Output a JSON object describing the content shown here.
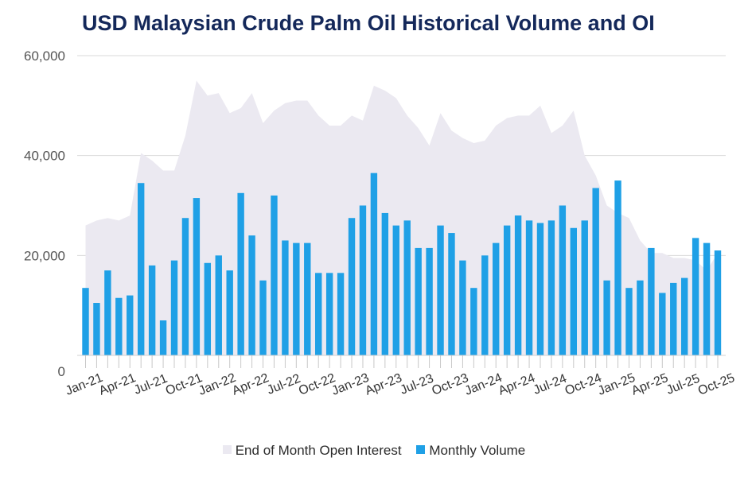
{
  "chart_data": {
    "type": "bar",
    "title": "USD Malaysian Crude Palm Oil Historical Volume and OI",
    "xlabel": "",
    "ylabel": "",
    "ylim": [
      0,
      60000
    ],
    "y_ticks": [
      0,
      20000,
      40000,
      60000
    ],
    "y_tick_labels": [
      "0",
      "20,000",
      "40,000",
      "60,000"
    ],
    "grid": true,
    "legend_position": "bottom",
    "x_tick_labels": [
      "Jan-21",
      "Apr-21",
      "Jul-21",
      "Oct-21",
      "Jan-22",
      "Apr-22",
      "Jul-22",
      "Oct-22",
      "Jan-23",
      "Apr-23",
      "Jul-23",
      "Oct-23",
      "Jan-24",
      "Apr-24",
      "Jul-24",
      "Oct-24",
      "Jan-25",
      "Apr-25",
      "Jul-25",
      "Oct-25"
    ],
    "categories": [
      "Jan-21",
      "Feb-21",
      "Mar-21",
      "Apr-21",
      "May-21",
      "Jun-21",
      "Jul-21",
      "Aug-21",
      "Sep-21",
      "Oct-21",
      "Nov-21",
      "Dec-21",
      "Jan-22",
      "Feb-22",
      "Mar-22",
      "Apr-22",
      "May-22",
      "Jun-22",
      "Jul-22",
      "Aug-22",
      "Sep-22",
      "Oct-22",
      "Nov-22",
      "Dec-22",
      "Jan-23",
      "Feb-23",
      "Mar-23",
      "Apr-23",
      "May-23",
      "Jun-23",
      "Jul-23",
      "Aug-23",
      "Sep-23",
      "Oct-23",
      "Nov-23",
      "Dec-23",
      "Jan-24",
      "Feb-24",
      "Mar-24",
      "Apr-24",
      "May-24",
      "Jun-24",
      "Jul-24",
      "Aug-24",
      "Sep-24",
      "Oct-24",
      "Nov-24",
      "Dec-24",
      "Jan-25",
      "Feb-25",
      "Mar-25",
      "Apr-25",
      "May-25",
      "Jun-25",
      "Jul-25",
      "Aug-25",
      "Sep-25",
      "Oct-25"
    ],
    "series": [
      {
        "name": "End of Month Open Interest",
        "type": "area",
        "color": "#ebe9f1",
        "values": [
          26000,
          27000,
          27500,
          27000,
          28000,
          40500,
          39000,
          37000,
          37000,
          44000,
          55000,
          52000,
          52500,
          48500,
          49500,
          52500,
          46500,
          49000,
          50500,
          51000,
          51000,
          48000,
          46000,
          46000,
          48000,
          47000,
          54000,
          53000,
          51500,
          48000,
          45500,
          42000,
          48500,
          45000,
          43500,
          42500,
          43000,
          46000,
          47500,
          48000,
          48000,
          50000,
          44500,
          46000,
          49000,
          40000,
          36000,
          30000,
          28500,
          27500,
          23000,
          20500,
          20500,
          19500,
          19500,
          19000,
          17000,
          20500
        ]
      },
      {
        "name": "Monthly Volume",
        "type": "bar",
        "color": "#1fa0e6",
        "values": [
          13500,
          10500,
          17000,
          11500,
          12000,
          34500,
          18000,
          7000,
          19000,
          27500,
          31500,
          18500,
          20000,
          17000,
          32500,
          24000,
          15000,
          32000,
          23000,
          22500,
          22500,
          16500,
          16500,
          16500,
          27500,
          30000,
          36500,
          28500,
          26000,
          27000,
          21500,
          21500,
          26000,
          24500,
          19000,
          13500,
          20000,
          22500,
          26000,
          28000,
          27000,
          26500,
          27000,
          30000,
          25500,
          27000,
          33500,
          15000,
          35000,
          13500,
          15000,
          21500,
          12500,
          14500,
          15500,
          23500,
          22500,
          21000
        ]
      }
    ]
  },
  "legend": {
    "items": [
      {
        "label": "End of Month Open Interest",
        "color": "#ebe9f1"
      },
      {
        "label": "Monthly Volume",
        "color": "#1fa0e6"
      }
    ]
  }
}
